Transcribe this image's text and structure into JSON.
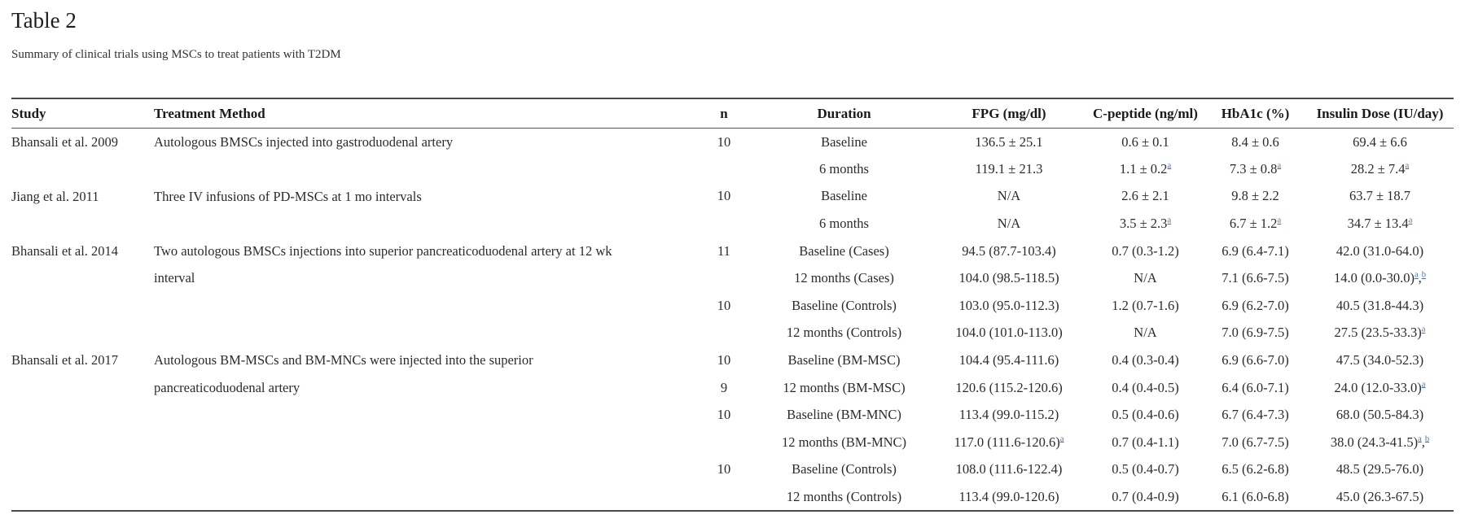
{
  "page": {
    "title": "Table 2",
    "subtitle": "Summary of clinical trials using MSCs to treat patients with T2DM"
  },
  "colors": {
    "footnote_link": "#4a719c",
    "rule": "#4a4a4a",
    "text": "#2b2b2b"
  },
  "table": {
    "columns": [
      "Study",
      "Treatment Method",
      "n",
      "Duration",
      "FPG (mg/dl)",
      "C-peptide (ng/ml)",
      "HbA1c (%)",
      "Insulin Dose (IU/day)"
    ],
    "groups": [
      {
        "study": "Bhansali et al. 2009",
        "treatment_lines": [
          "Autologous BMSCs injected into gastroduodenal artery"
        ],
        "rows": [
          {
            "n": "10",
            "duration": "Baseline",
            "fpg": "136.5 ± 25.1",
            "cpeptide": "0.6 ± 0.1",
            "hba1c": "8.4 ± 0.6",
            "insulin": "69.4 ± 6.6"
          },
          {
            "n": "",
            "duration": "6 months",
            "fpg": "119.1 ± 21.3",
            "cpeptide": "1.1 ± 0.2^a",
            "hba1c": "7.3 ± 0.8^a",
            "insulin": "28.2 ± 7.4^a"
          }
        ]
      },
      {
        "study": "Jiang et al. 2011",
        "treatment_lines": [
          "Three IV infusions of PD-MSCs at 1 mo intervals"
        ],
        "rows": [
          {
            "n": "10",
            "duration": "Baseline",
            "fpg": "N/A",
            "cpeptide": "2.6 ± 2.1",
            "hba1c": "9.8 ± 2.2",
            "insulin": "63.7 ± 18.7"
          },
          {
            "n": "",
            "duration": "6 months",
            "fpg": "N/A",
            "cpeptide": "3.5 ± 2.3^a",
            "hba1c": "6.7 ± 1.2^a",
            "insulin": "34.7 ± 13.4^a"
          }
        ]
      },
      {
        "study": "Bhansali et al. 2014",
        "treatment_lines": [
          "Two autologous BMSCs injections into superior pancreaticoduodenal artery at 12 wk",
          "interval"
        ],
        "rows": [
          {
            "n": "11",
            "duration": "Baseline (Cases)",
            "fpg": "94.5 (87.7-103.4)",
            "cpeptide": "0.7 (0.3-1.2)",
            "hba1c": "6.9 (6.4-7.1)",
            "insulin": "42.0 (31.0-64.0)"
          },
          {
            "n": "",
            "duration": "12 months (Cases)",
            "fpg": "104.0 (98.5-118.5)",
            "cpeptide": "N/A",
            "hba1c": "7.1 (6.6-7.5)",
            "insulin": "14.0 (0.0-30.0)^a,^b"
          },
          {
            "n": "10",
            "duration": "Baseline (Controls)",
            "fpg": "103.0 (95.0-112.3)",
            "cpeptide": "1.2 (0.7-1.6)",
            "hba1c": "6.9 (6.2-7.0)",
            "insulin": "40.5 (31.8-44.3)"
          },
          {
            "n": "",
            "duration": "12 months (Controls)",
            "fpg": "104.0 (101.0-113.0)",
            "cpeptide": "N/A",
            "hba1c": "7.0 (6.9-7.5)",
            "insulin": "27.5 (23.5-33.3)^a"
          }
        ]
      },
      {
        "study": "Bhansali et al. 2017",
        "treatment_lines": [
          "Autologous BM-MSCs and BM-MNCs were injected into the superior",
          "pancreaticoduodenal artery"
        ],
        "rows": [
          {
            "n": "10",
            "duration": "Baseline (BM-MSC)",
            "fpg": "104.4 (95.4-111.6)",
            "cpeptide": "0.4 (0.3-0.4)",
            "hba1c": "6.9 (6.6-7.0)",
            "insulin": "47.5 (34.0-52.3)"
          },
          {
            "n": "9",
            "duration": "12 months (BM-MSC)",
            "fpg": "120.6 (115.2-120.6)",
            "cpeptide": "0.4 (0.4-0.5)",
            "hba1c": "6.4 (6.0-7.1)",
            "insulin": "24.0 (12.0-33.0)^a"
          },
          {
            "n": "10",
            "duration": "Baseline (BM-MNC)",
            "fpg": "113.4 (99.0-115.2)",
            "cpeptide": "0.5 (0.4-0.6)",
            "hba1c": "6.7 (6.4-7.3)",
            "insulin": "68.0 (50.5-84.3)"
          },
          {
            "n": "",
            "duration": "12 months (BM-MNC)",
            "fpg": "117.0 (111.6-120.6)^a",
            "cpeptide": "0.7 (0.4-1.1)",
            "hba1c": "7.0 (6.7-7.5)",
            "insulin": "38.0 (24.3-41.5)^a,^b"
          },
          {
            "n": "10",
            "duration": "Baseline (Controls)",
            "fpg": "108.0 (111.6-122.4)",
            "cpeptide": "0.5 (0.4-0.7)",
            "hba1c": "6.5 (6.2-6.8)",
            "insulin": "48.5 (29.5-76.0)"
          },
          {
            "n": "",
            "duration": "12 months (Controls)",
            "fpg": "113.4 (99.0-120.6)",
            "cpeptide": "0.7 (0.4-0.9)",
            "hba1c": "6.1 (6.0-6.8)",
            "insulin": "45.0 (26.3-67.5)"
          }
        ]
      }
    ]
  }
}
